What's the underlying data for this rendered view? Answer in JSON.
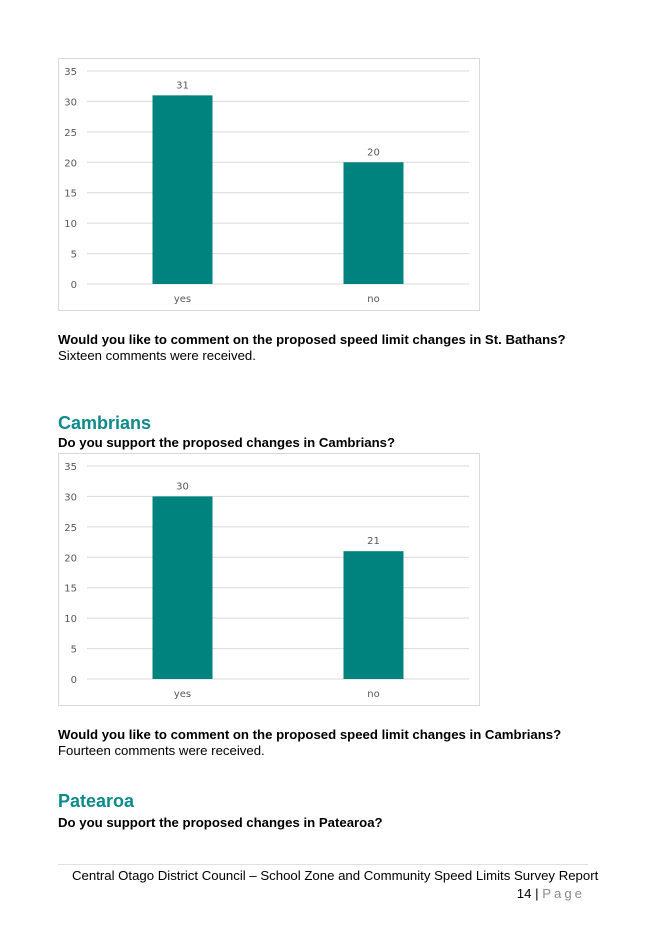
{
  "chart_data": [
    {
      "type": "bar",
      "categories": [
        "yes",
        "no"
      ],
      "values": [
        31,
        20
      ],
      "ylim": [
        0,
        35
      ],
      "yticks": [
        0,
        5,
        10,
        15,
        20,
        25,
        30,
        35
      ],
      "data_labels": [
        "31",
        "20"
      ],
      "grid": true,
      "color": "#00827f"
    },
    {
      "type": "bar",
      "categories": [
        "yes",
        "no"
      ],
      "values": [
        30,
        21
      ],
      "ylim": [
        0,
        35
      ],
      "yticks": [
        0,
        5,
        10,
        15,
        20,
        25,
        30,
        35
      ],
      "data_labels": [
        "30",
        "21"
      ],
      "grid": true,
      "color": "#00827f"
    }
  ],
  "st_bathans": {
    "comment_question": "Would you like to comment on the proposed speed limit changes in St. Bathans?",
    "comment_answer": "Sixteen comments were received."
  },
  "cambrians": {
    "heading": "Cambrians",
    "support_question": "Do you support the proposed changes in Cambrians?",
    "comment_question": "Would you like to comment on the proposed speed limit changes in Cambrians?",
    "comment_answer": "Fourteen comments were received."
  },
  "patearoa": {
    "heading": "Patearoa",
    "support_question": "Do you support the proposed changes in Patearoa?"
  },
  "footer": {
    "text": "Central Otago District Council – School Zone and Community Speed Limits Survey Report",
    "page_number": "14",
    "separator": "|",
    "page_word": "Page"
  },
  "colors": {
    "bar": "#00827f",
    "heading": "#0d8a8a",
    "axis_text": "#595959",
    "gridline": "#d9d9d9"
  }
}
